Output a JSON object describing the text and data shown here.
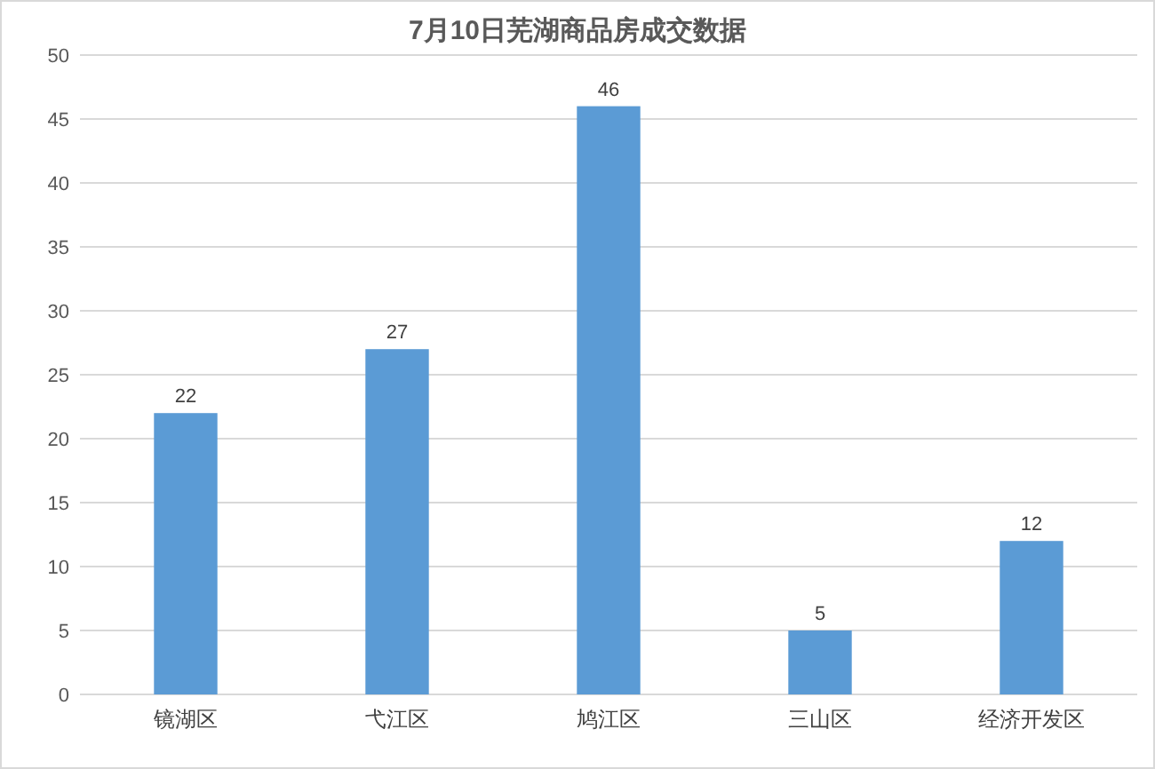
{
  "chart_data": {
    "type": "bar",
    "title": "7月10日芜湖商品房成交数据",
    "categories": [
      "镜湖区",
      "弋江区",
      "鸠江区",
      "三山区",
      "经济开发区"
    ],
    "values": [
      22,
      27,
      46,
      5,
      12
    ],
    "color": "#5b9bd5",
    "ylim": [
      0,
      50
    ],
    "yticks": [
      0,
      5,
      10,
      15,
      20,
      25,
      30,
      35,
      40,
      45,
      50
    ],
    "grid": "y",
    "data_labels": true
  }
}
